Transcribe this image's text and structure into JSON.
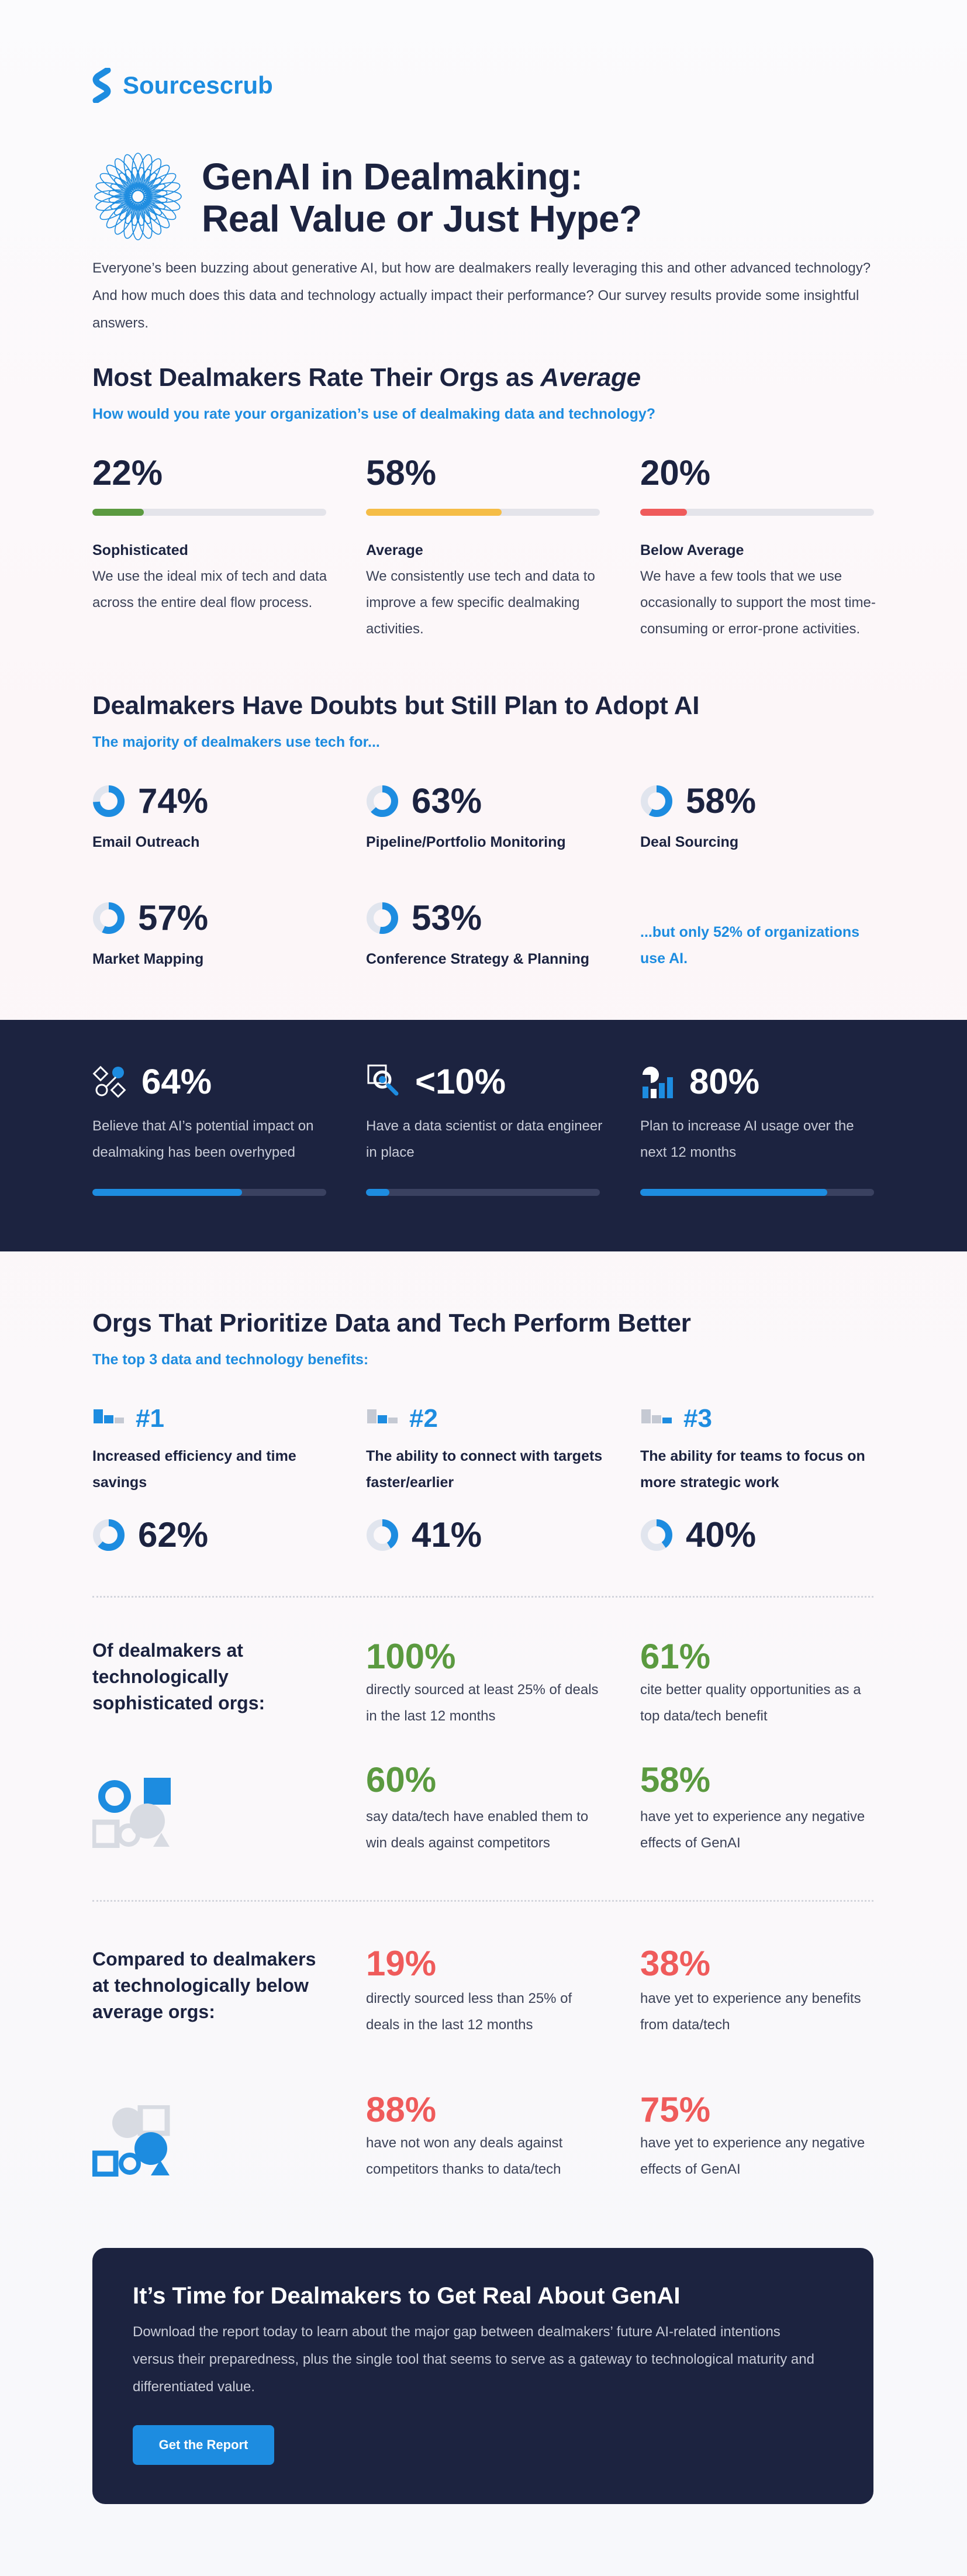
{
  "header": {
    "brand": "Sourcescrub",
    "title_lines": [
      "GenAI in Dealmaking:",
      "Real Value or Just Hype?"
    ],
    "intro": "Everyone’s been buzzing about generative AI, but how are dealmakers really leveraging this and other advanced technology? And how much does this data and technology actually impact their performance? Our survey results provide some insightful answers."
  },
  "rating": {
    "heading": "Most Dealmakers Rate Their Orgs as",
    "heading_emphasis": "Average",
    "question": "How would you rate your organization’s use of dealmaking data and technology?",
    "items": [
      {
        "value": 22,
        "label": "22%",
        "color": "#5b9a40",
        "name": "Sophisticated",
        "description": "We use the ideal mix of tech and data across the entire deal flow process."
      },
      {
        "value": 58,
        "label": "58%",
        "color": "#f5bd47",
        "name": "Average",
        "description": "We consistently use tech and data to improve a few specific dealmaking activities."
      },
      {
        "value": 20,
        "label": "20%",
        "color": "#ef5b5b",
        "name": "Below Average",
        "description": "We have a few tools that we use occasionally to support the most time-consuming or error-prone activities."
      }
    ]
  },
  "adoption": {
    "heading": "Dealmakers Have Doubts but Still Plan to Adopt AI",
    "subheading": "The majority of dealmakers use tech for...",
    "items": [
      {
        "value": 74,
        "label": "74%",
        "name": "Email Outreach"
      },
      {
        "value": 63,
        "label": "63%",
        "name": "Pipeline/Portfolio Monitoring"
      },
      {
        "value": 58,
        "label": "58%",
        "name": "Deal Sourcing"
      },
      {
        "value": 57,
        "label": "57%",
        "name": "Market Mapping"
      },
      {
        "value": 53,
        "label": "53%",
        "name": "Conference Strategy & Planning"
      }
    ],
    "note": "...but only 52% of organizations use AI."
  },
  "perceptions": [
    {
      "value": 64,
      "label": "64%",
      "description": "Believe that AI’s potential impact on dealmaking has been overhyped"
    },
    {
      "value": 10,
      "label": "<10%",
      "description": "Have a data scientist or data engineer in place"
    },
    {
      "value": 80,
      "label": "80%",
      "description": "Plan to increase AI usage over the next 12 months"
    }
  ],
  "benefits": {
    "heading": "Orgs That Prioritize Data and Tech Perform Better",
    "subheading": "The top 3 data and technology benefits:",
    "items": [
      {
        "rank": "#1",
        "name": "Increased efficiency and time savings",
        "value": 62,
        "label": "62%"
      },
      {
        "rank": "#2",
        "name": "The ability to connect with targets faster/earlier",
        "value": 41,
        "label": "41%"
      },
      {
        "rank": "#3",
        "name": "The ability for teams to focus on more strategic work",
        "value": 40,
        "label": "40%"
      }
    ]
  },
  "sophisticated": {
    "heading": "Of dealmakers at technologically sophisticated orgs:",
    "stats": [
      {
        "label": "100%",
        "description": "directly sourced at least 25% of deals in the last 12 months"
      },
      {
        "label": "61%",
        "description": "cite better quality opportunities as a top data/tech benefit"
      },
      {
        "label": "60%",
        "description": "say data/tech have enabled them to win deals against competitors"
      },
      {
        "label": "58%",
        "description": "have yet to experience any negative effects of GenAI"
      }
    ]
  },
  "below_average": {
    "heading": "Compared to dealmakers at technologically below average orgs:",
    "stats": [
      {
        "label": "19%",
        "description": "directly sourced less than 25% of deals in the last 12 months"
      },
      {
        "label": "38%",
        "description": "have yet to experience any benefits from data/tech"
      },
      {
        "label": "88%",
        "description": "have not won any deals against competitors thanks to data/tech"
      },
      {
        "label": "75%",
        "description": "have yet to experience any negative effects of GenAI"
      }
    ]
  },
  "cta": {
    "title": "It’s Time for Dealmakers to Get Real About GenAI",
    "description": "Download the report today to learn about the major gap between dealmakers’ future AI-related intentions versus their preparedness, plus the single tool that seems to serve as a gateway to technological maturity and differentiated value.",
    "button": "Get the Report"
  }
}
